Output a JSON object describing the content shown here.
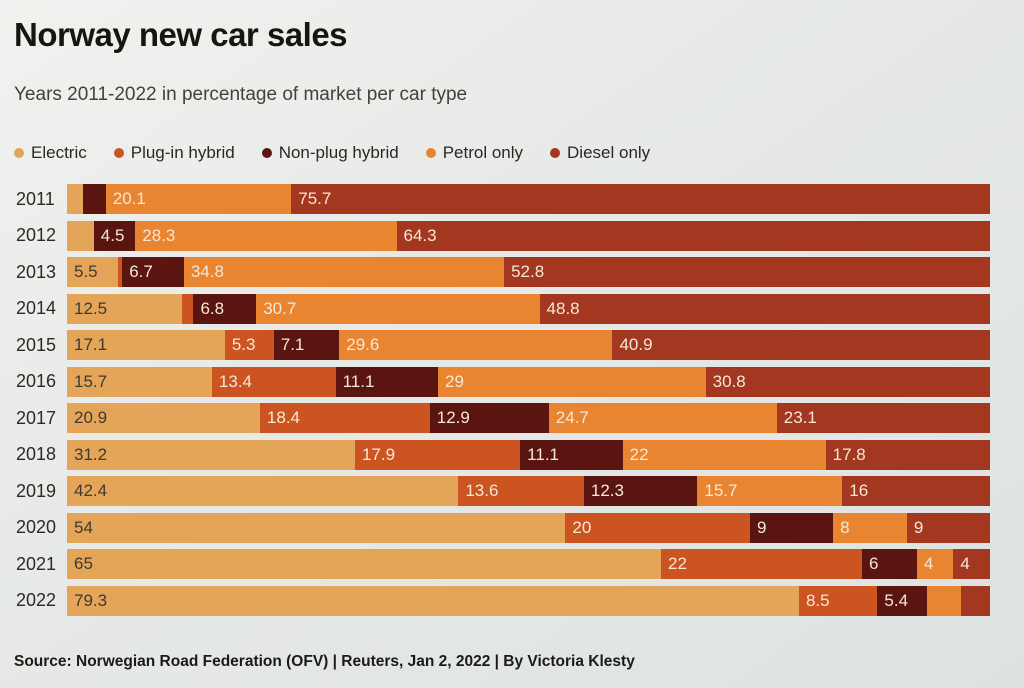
{
  "title": "Norway new car sales",
  "subtitle": "Years 2011-2022 in percentage of market per car type",
  "source": "Source: Norwegian Road Federation (OFV) | Reuters, Jan 2, 2022 | By Victoria Klesty",
  "colors": {
    "electric": "#e4a558",
    "plug_in_hybrid": "#cc5420",
    "non_plug_hybrid": "#5a1511",
    "petrol_only": "#e98431",
    "diesel_only": "#a4371f",
    "label_light": "#f6e8d6",
    "label_dark": "#3e3933"
  },
  "chart_data": {
    "type": "bar",
    "orientation": "horizontal",
    "stacked": true,
    "xlim": [
      0,
      100
    ],
    "grid": false,
    "legend_position": "top",
    "title": "Norway new car sales",
    "subtitle": "Years 2011-2022 in percentage of market per car type",
    "categories": [
      "2011",
      "2012",
      "2013",
      "2014",
      "2015",
      "2016",
      "2017",
      "2018",
      "2019",
      "2020",
      "2021",
      "2022"
    ],
    "series": [
      {
        "name": "Electric",
        "color": "#e4a558",
        "label_color": "#3e3933",
        "values": [
          1.7,
          2.9,
          5.5,
          12.5,
          17.1,
          15.7,
          20.9,
          31.2,
          42.4,
          54,
          65,
          79.3
        ],
        "labels": [
          "",
          "",
          "5.5",
          "12.5",
          "17.1",
          "15.7",
          "20.9",
          "31.2",
          "42.4",
          "54",
          "65",
          "79.3"
        ]
      },
      {
        "name": "Plug-in hybrid",
        "color": "#cc5420",
        "label_color": "#f6e8d6",
        "values": [
          0,
          0,
          0.5,
          1.2,
          5.3,
          13.4,
          18.4,
          17.9,
          13.6,
          20,
          22,
          8.5
        ],
        "labels": [
          "",
          "",
          "",
          "",
          "5.3",
          "13.4",
          "18.4",
          "17.9",
          "13.6",
          "20",
          "22",
          "8.5"
        ]
      },
      {
        "name": "Non-plug hybrid",
        "color": "#5a1511",
        "label_color": "#f6e8d6",
        "values": [
          2.5,
          4.5,
          6.7,
          6.8,
          7.1,
          11.1,
          12.9,
          11.1,
          12.3,
          9,
          6,
          5.4
        ],
        "labels": [
          "",
          "4.5",
          "6.7",
          "6.8",
          "7.1",
          "11.1",
          "12.9",
          "11.1",
          "12.3",
          "9",
          "6",
          "5.4"
        ]
      },
      {
        "name": "Petrol only",
        "color": "#e98431",
        "label_color": "#f6e8d6",
        "values": [
          20.1,
          28.3,
          34.8,
          30.7,
          29.6,
          29,
          24.7,
          22,
          15.7,
          8,
          4,
          3.7
        ],
        "labels": [
          "20.1",
          "28.3",
          "34.8",
          "30.7",
          "29.6",
          "29",
          "24.7",
          "22",
          "15.7",
          "8",
          "4",
          ""
        ]
      },
      {
        "name": "Diesel only",
        "color": "#a4371f",
        "label_color": "#f6e8d6",
        "values": [
          75.7,
          64.3,
          52.8,
          48.8,
          40.9,
          30.8,
          23.1,
          17.8,
          16,
          9,
          4,
          3.1
        ],
        "labels": [
          "75.7",
          "64.3",
          "52.8",
          "48.8",
          "40.9",
          "30.8",
          "23.1",
          "17.8",
          "16",
          "9",
          "4",
          ""
        ]
      }
    ]
  }
}
